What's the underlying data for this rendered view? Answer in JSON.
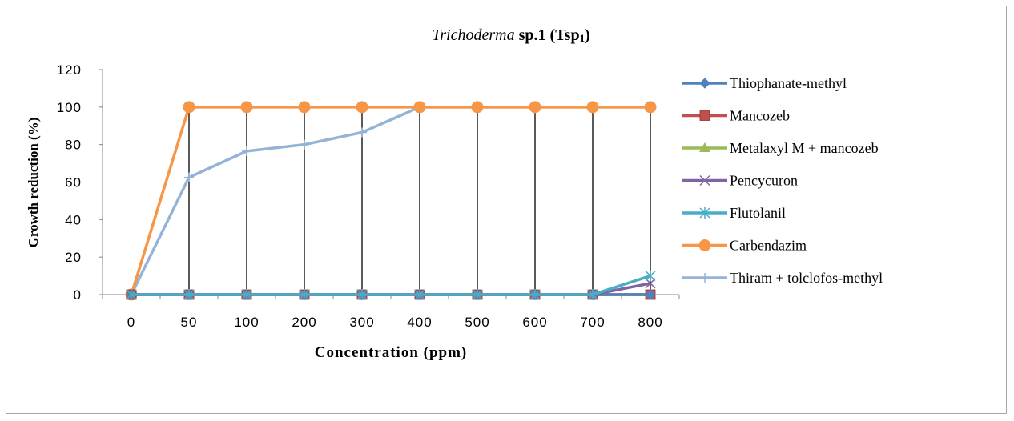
{
  "chart_data": {
    "type": "line",
    "title_italic": "Trichoderma",
    "title_rest": " sp.1 (Tsp",
    "title_sub": "1",
    "title_end": ")",
    "xlabel": "Concentration (ppm)",
    "ylabel": "Growth reduction (%)",
    "categories": [
      "0",
      "50",
      "100",
      "200",
      "300",
      "400",
      "500",
      "600",
      "700",
      "800"
    ],
    "ylim": [
      0,
      120
    ],
    "yticks": [
      0,
      20,
      40,
      60,
      80,
      100,
      120
    ],
    "grid": "vertical drop lines",
    "legend_position": "right",
    "series": [
      {
        "name": "Thiophanate-methyl",
        "color": "#4f81bd",
        "marker": "diamond",
        "values": [
          0,
          0,
          0,
          0,
          0,
          0,
          0,
          0,
          0,
          0
        ]
      },
      {
        "name": "Mancozeb",
        "color": "#c0504d",
        "marker": "square",
        "values": [
          0,
          0,
          0,
          0,
          0,
          0,
          0,
          0,
          0,
          0
        ]
      },
      {
        "name": "Metalaxyl M + mancozeb",
        "color": "#9bbb59",
        "marker": "triangle",
        "values": [
          0,
          0,
          0,
          0,
          0,
          0,
          0,
          0,
          0,
          0
        ]
      },
      {
        "name": "Pencycuron",
        "color": "#8064a2",
        "marker": "x",
        "values": [
          0,
          0,
          0,
          0,
          0,
          0,
          0,
          0,
          0,
          6
        ]
      },
      {
        "name": "Flutolanil",
        "color": "#4bacc6",
        "marker": "star",
        "values": [
          0,
          0,
          0,
          0,
          0,
          0,
          0,
          0,
          0,
          10
        ]
      },
      {
        "name": "Carbendazim",
        "color": "#f79646",
        "marker": "circle",
        "values": [
          0,
          100,
          100,
          100,
          100,
          100,
          100,
          100,
          100,
          100
        ]
      },
      {
        "name": "Thiram + tolclofos-methyl",
        "color": "#95b3d7",
        "marker": "plus",
        "values": [
          0,
          62.5,
          76.5,
          80,
          86.5,
          100,
          100,
          100,
          100,
          100
        ]
      }
    ]
  }
}
